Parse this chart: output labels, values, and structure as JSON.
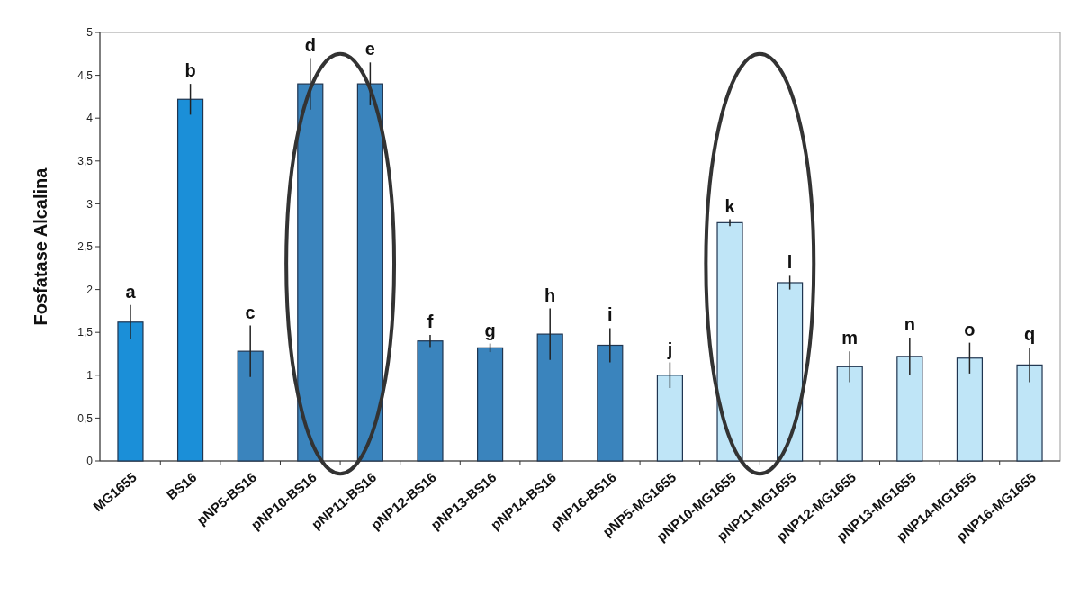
{
  "chart_data": {
    "type": "bar",
    "ylabel": "Fosfatase Alcalina",
    "categories": [
      "MG1655",
      "BS16",
      "pNP5-BS16",
      "pNP10-BS16",
      "pNP11-BS16",
      "pNP12-BS16",
      "pNP13-BS16",
      "pNP14-BS16",
      "pNP16-BS16",
      "pNP5-MG1655",
      "pNP10-MG1655",
      "pNP11-MG1655",
      "pNP12-MG1655",
      "pNP13-MG1655",
      "pNP14-MG1655",
      "pNP16-MG1655"
    ],
    "values": [
      1.62,
      4.22,
      1.28,
      4.4,
      4.4,
      1.4,
      1.32,
      1.48,
      1.35,
      1.0,
      2.78,
      2.08,
      1.1,
      1.22,
      1.2,
      1.12
    ],
    "errors": [
      0.2,
      0.18,
      0.3,
      0.3,
      0.25,
      0.07,
      0.05,
      0.3,
      0.2,
      0.15,
      0.04,
      0.08,
      0.18,
      0.22,
      0.18,
      0.2
    ],
    "colors": [
      "#1b8fd8",
      "#1b8fd8",
      "#3a84bd",
      "#3a84bd",
      "#3a84bd",
      "#3a84bd",
      "#3a84bd",
      "#3a84bd",
      "#3a84bd",
      "#bfe5f7",
      "#bfe5f7",
      "#bfe5f7",
      "#bfe5f7",
      "#bfe5f7",
      "#bfe5f7",
      "#bfe5f7"
    ],
    "ylim": [
      0,
      5
    ],
    "yticks": [
      0,
      {
        "value": 0.5,
        "label": "0,5"
      },
      1,
      {
        "value": 1.5,
        "label": "1,5"
      },
      2,
      {
        "value": 2.5,
        "label": "2,5"
      },
      3,
      {
        "value": 3.5,
        "label": "3,5"
      },
      4,
      {
        "value": 4.5,
        "label": "4,5"
      },
      5
    ],
    "annotations": [
      {
        "text": "a",
        "x": "MG1655",
        "y": 1.62
      },
      {
        "text": "b",
        "x": "BS16",
        "y": 4.22
      },
      {
        "text": "c",
        "x": "pNP5-BS16",
        "y": 1.28
      },
      {
        "text": "d",
        "x": "pNP10-BS16",
        "y": 4.4
      },
      {
        "text": "e",
        "x": "pNP11-BS16",
        "y": 4.4
      },
      {
        "text": "f",
        "x": "pNP12-BS16",
        "y": 1.4
      },
      {
        "text": "g",
        "x": "pNP13-BS16",
        "y": 1.32
      },
      {
        "text": "h",
        "x": "pNP14-BS16",
        "y": 1.48
      },
      {
        "text": "i",
        "x": "pNP16-BS16",
        "y": 1.35
      },
      {
        "text": "j",
        "x": "pNP5-MG1655",
        "y": 1.0
      },
      {
        "text": "k",
        "x": "pNP10-MG1655",
        "y": 2.78
      },
      {
        "text": "l",
        "x": "pNP11-MG1655",
        "y": 2.08
      },
      {
        "text": "m",
        "x": "pNP12-MG1655",
        "y": 1.1
      },
      {
        "text": "n",
        "x": "pNP13-MG1655",
        "y": 1.22
      },
      {
        "text": "o",
        "x": "pNP14-MG1655",
        "y": 1.2
      },
      {
        "text": "q",
        "x": "pNP16-MG1655",
        "y": 1.12
      }
    ]
  }
}
